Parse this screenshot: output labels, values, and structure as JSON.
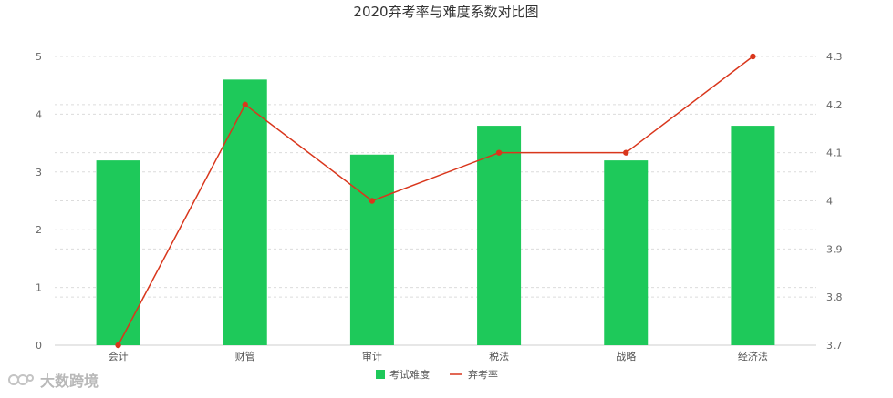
{
  "chart_data": {
    "type": "bar",
    "title": "2020弃考率与难度系数对比图",
    "categories": [
      "会计",
      "财管",
      "审计",
      "税法",
      "战略",
      "经济法"
    ],
    "series": [
      {
        "name": "考试难度",
        "type": "bar",
        "axis": "left",
        "color": "#1ec95a",
        "values": [
          3.2,
          4.6,
          3.3,
          3.8,
          3.2,
          3.8
        ]
      },
      {
        "name": "弃考率",
        "type": "line",
        "axis": "right",
        "color": "#d9361c",
        "values": [
          3.7,
          4.2,
          4.0,
          4.1,
          4.1,
          4.3
        ]
      }
    ],
    "y_left": {
      "min": 0,
      "max": 5,
      "ticks": [
        "0",
        "1",
        "2",
        "3",
        "4",
        "5"
      ]
    },
    "y_right": {
      "min": 3.7,
      "max": 4.3,
      "ticks": [
        "3.7",
        "3.8",
        "3.9",
        "4",
        "4.1",
        "4.2",
        "4.3"
      ]
    },
    "grid": true,
    "legend_position": "bottom-center"
  },
  "watermark": {
    "text": "大数跨境"
  }
}
